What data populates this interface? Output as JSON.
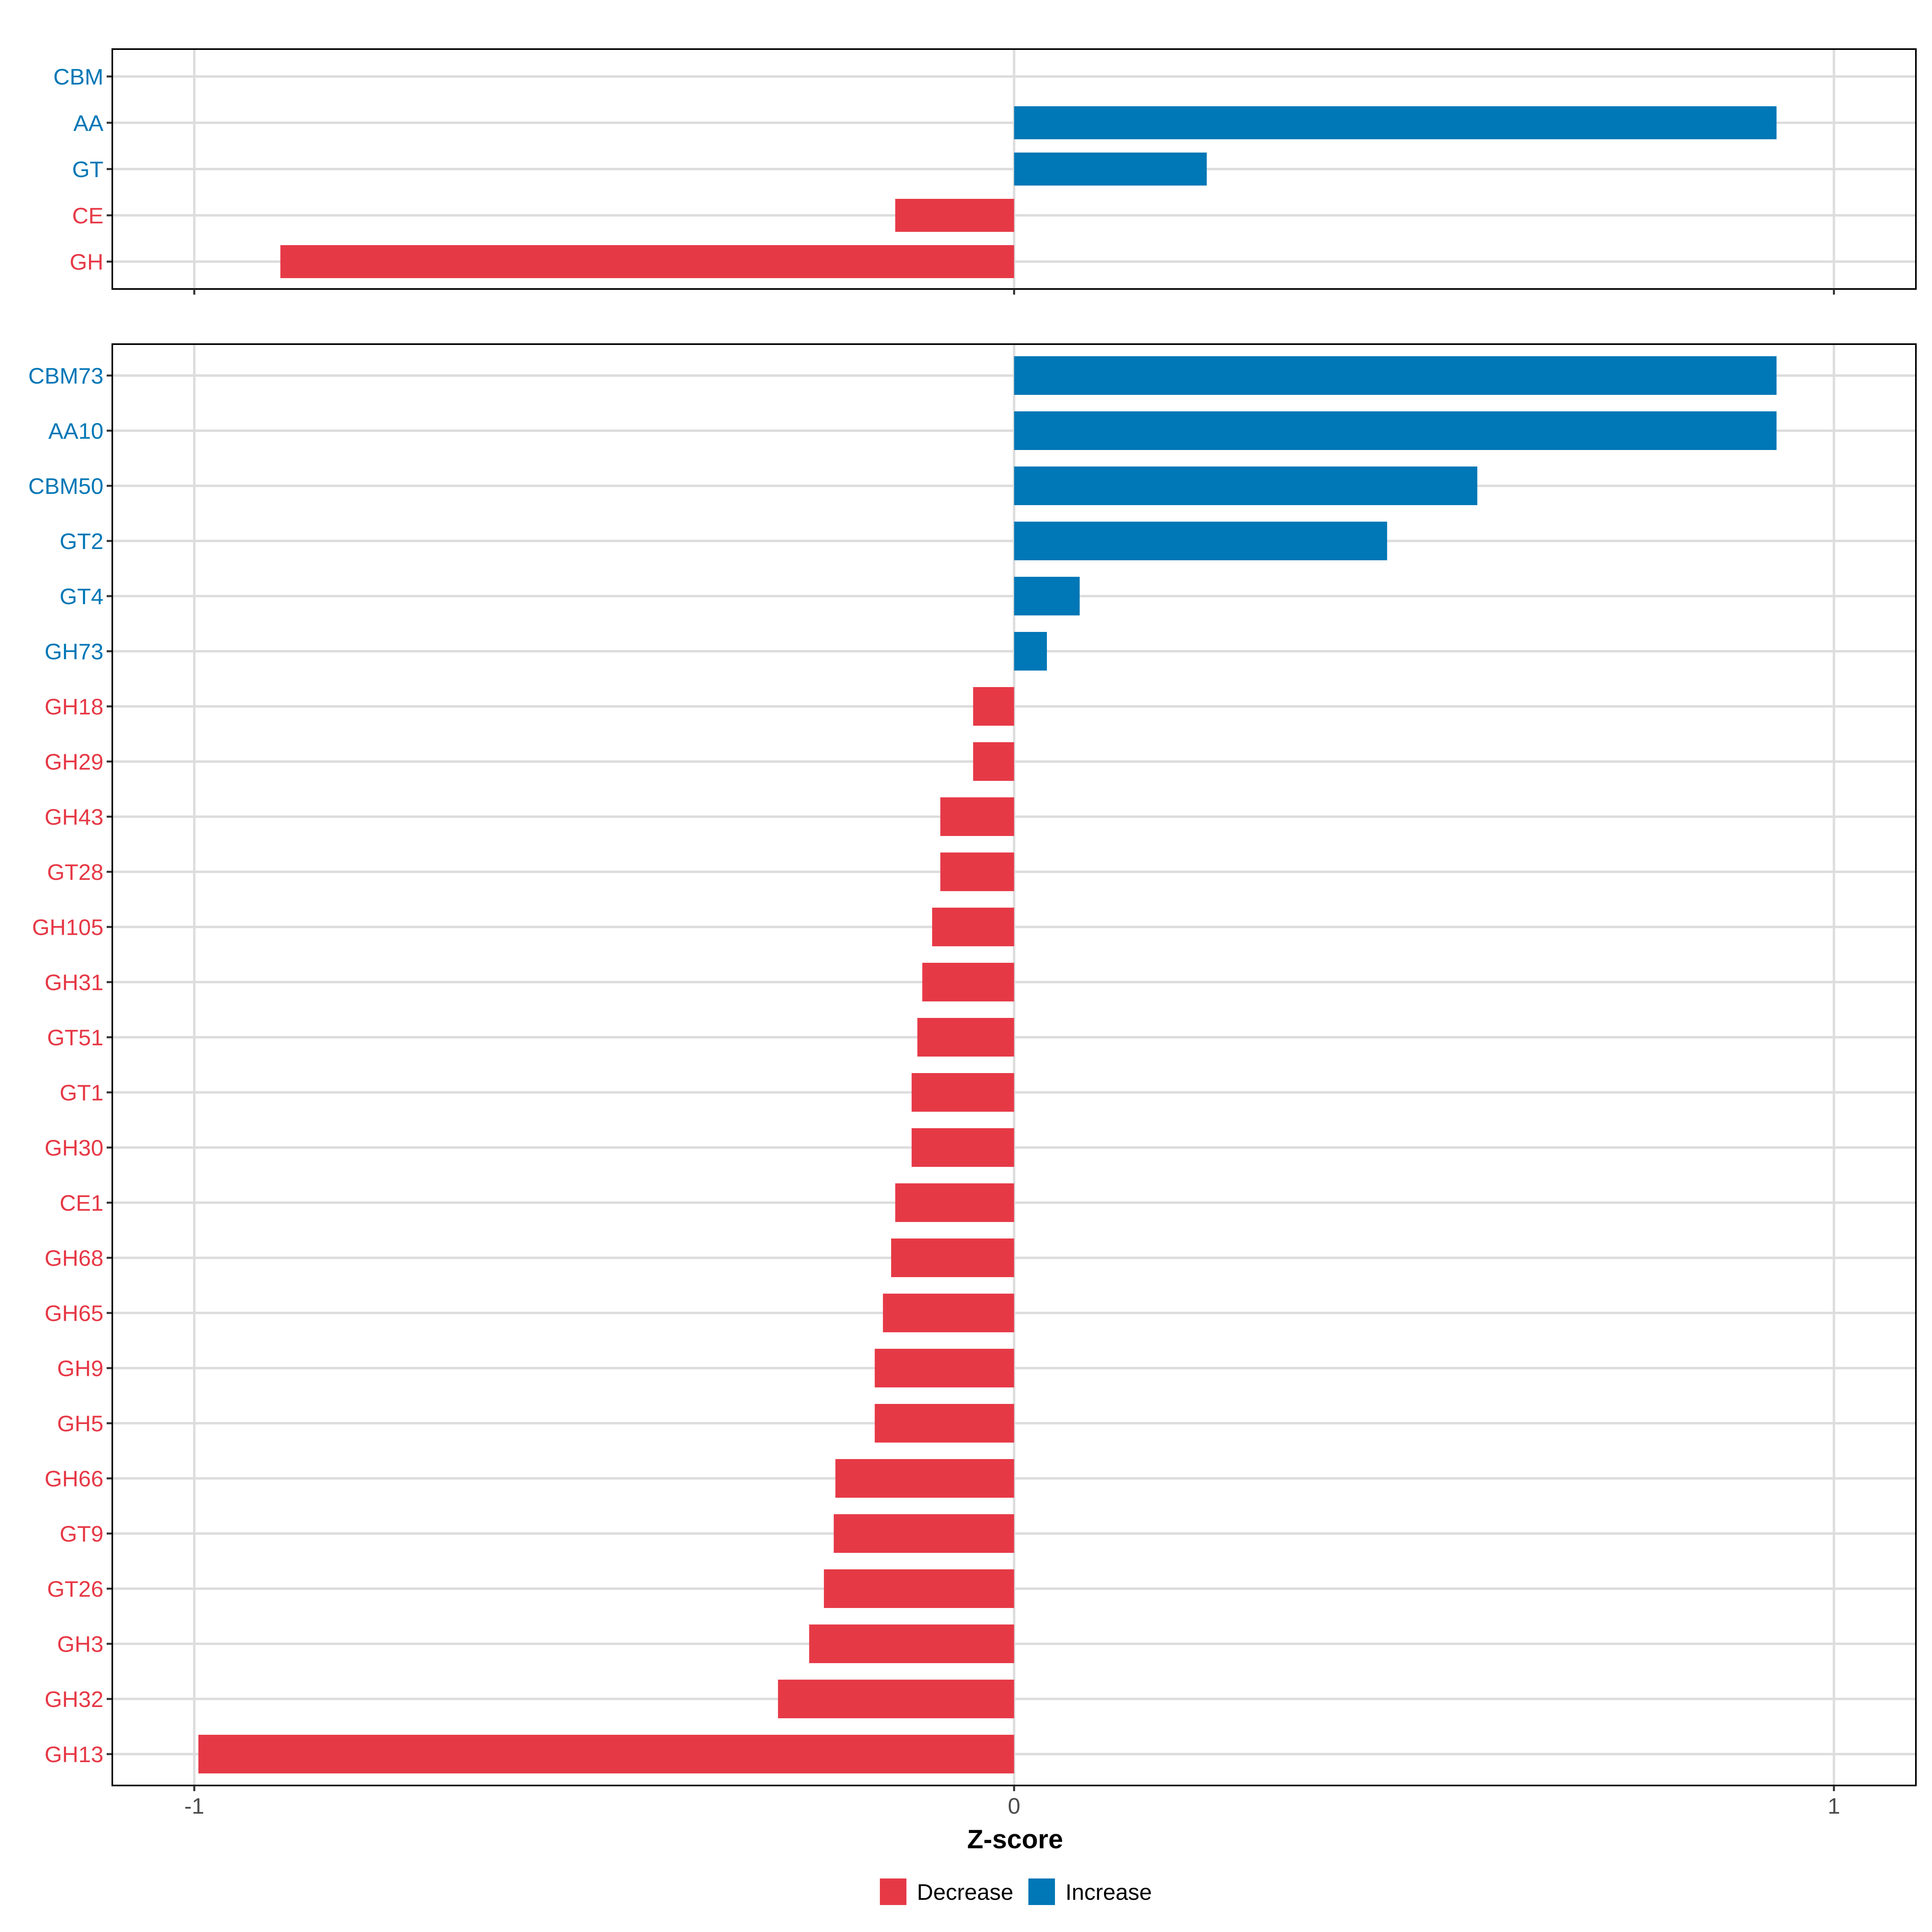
{
  "colors": {
    "decrease": "#E63946",
    "increase": "#0077B6",
    "grid": "#DDDDDD",
    "panel_border": "#000000",
    "axis_text": "#4D4D4D"
  },
  "legend": {
    "items": [
      {
        "label": "Decrease",
        "color_key": "decrease"
      },
      {
        "label": "Increase",
        "color_key": "increase"
      }
    ]
  },
  "chart_data": [
    {
      "type": "bar",
      "orientation": "horizontal",
      "panel": "top",
      "categories": [
        "CBM",
        "AA",
        "GT",
        "CE",
        "GH"
      ],
      "values": [
        0,
        0.93,
        0.235,
        -0.145,
        -0.895
      ],
      "groups": [
        "increase",
        "increase",
        "increase",
        "decrease",
        "decrease"
      ],
      "xlim": [
        -1.1,
        1.1
      ],
      "xticks": [
        -1,
        0,
        1
      ],
      "xtick_labels": [
        "-1",
        "0",
        "1"
      ],
      "grid": true
    },
    {
      "type": "bar",
      "orientation": "horizontal",
      "panel": "bottom",
      "categories": [
        "CBM73",
        "AA10",
        "CBM50",
        "GT2",
        "GT4",
        "GH73",
        "GH18",
        "GH29",
        "GH43",
        "GT28",
        "GH105",
        "GH31",
        "GT51",
        "GT1",
        "GH30",
        "CE1",
        "GH68",
        "GH65",
        "GH9",
        "GH5",
        "GH66",
        "GT9",
        "GT26",
        "GH3",
        "GH32",
        "GH13"
      ],
      "values": [
        0.93,
        0.93,
        0.565,
        0.455,
        0.08,
        0.04,
        -0.05,
        -0.05,
        -0.09,
        -0.09,
        -0.1,
        -0.112,
        -0.118,
        -0.125,
        -0.125,
        -0.145,
        -0.15,
        -0.16,
        -0.17,
        -0.17,
        -0.218,
        -0.22,
        -0.232,
        -0.25,
        -0.288,
        -0.995
      ],
      "groups": [
        "increase",
        "increase",
        "increase",
        "increase",
        "increase",
        "increase",
        "decrease",
        "decrease",
        "decrease",
        "decrease",
        "decrease",
        "decrease",
        "decrease",
        "decrease",
        "decrease",
        "decrease",
        "decrease",
        "decrease",
        "decrease",
        "decrease",
        "decrease",
        "decrease",
        "decrease",
        "decrease",
        "decrease",
        "decrease"
      ],
      "xlim": [
        -1.1,
        1.1
      ],
      "xticks": [
        -1,
        0,
        1
      ],
      "xtick_labels": [
        "-1",
        "0",
        "1"
      ],
      "xlabel": "Z-score",
      "grid": true
    }
  ]
}
